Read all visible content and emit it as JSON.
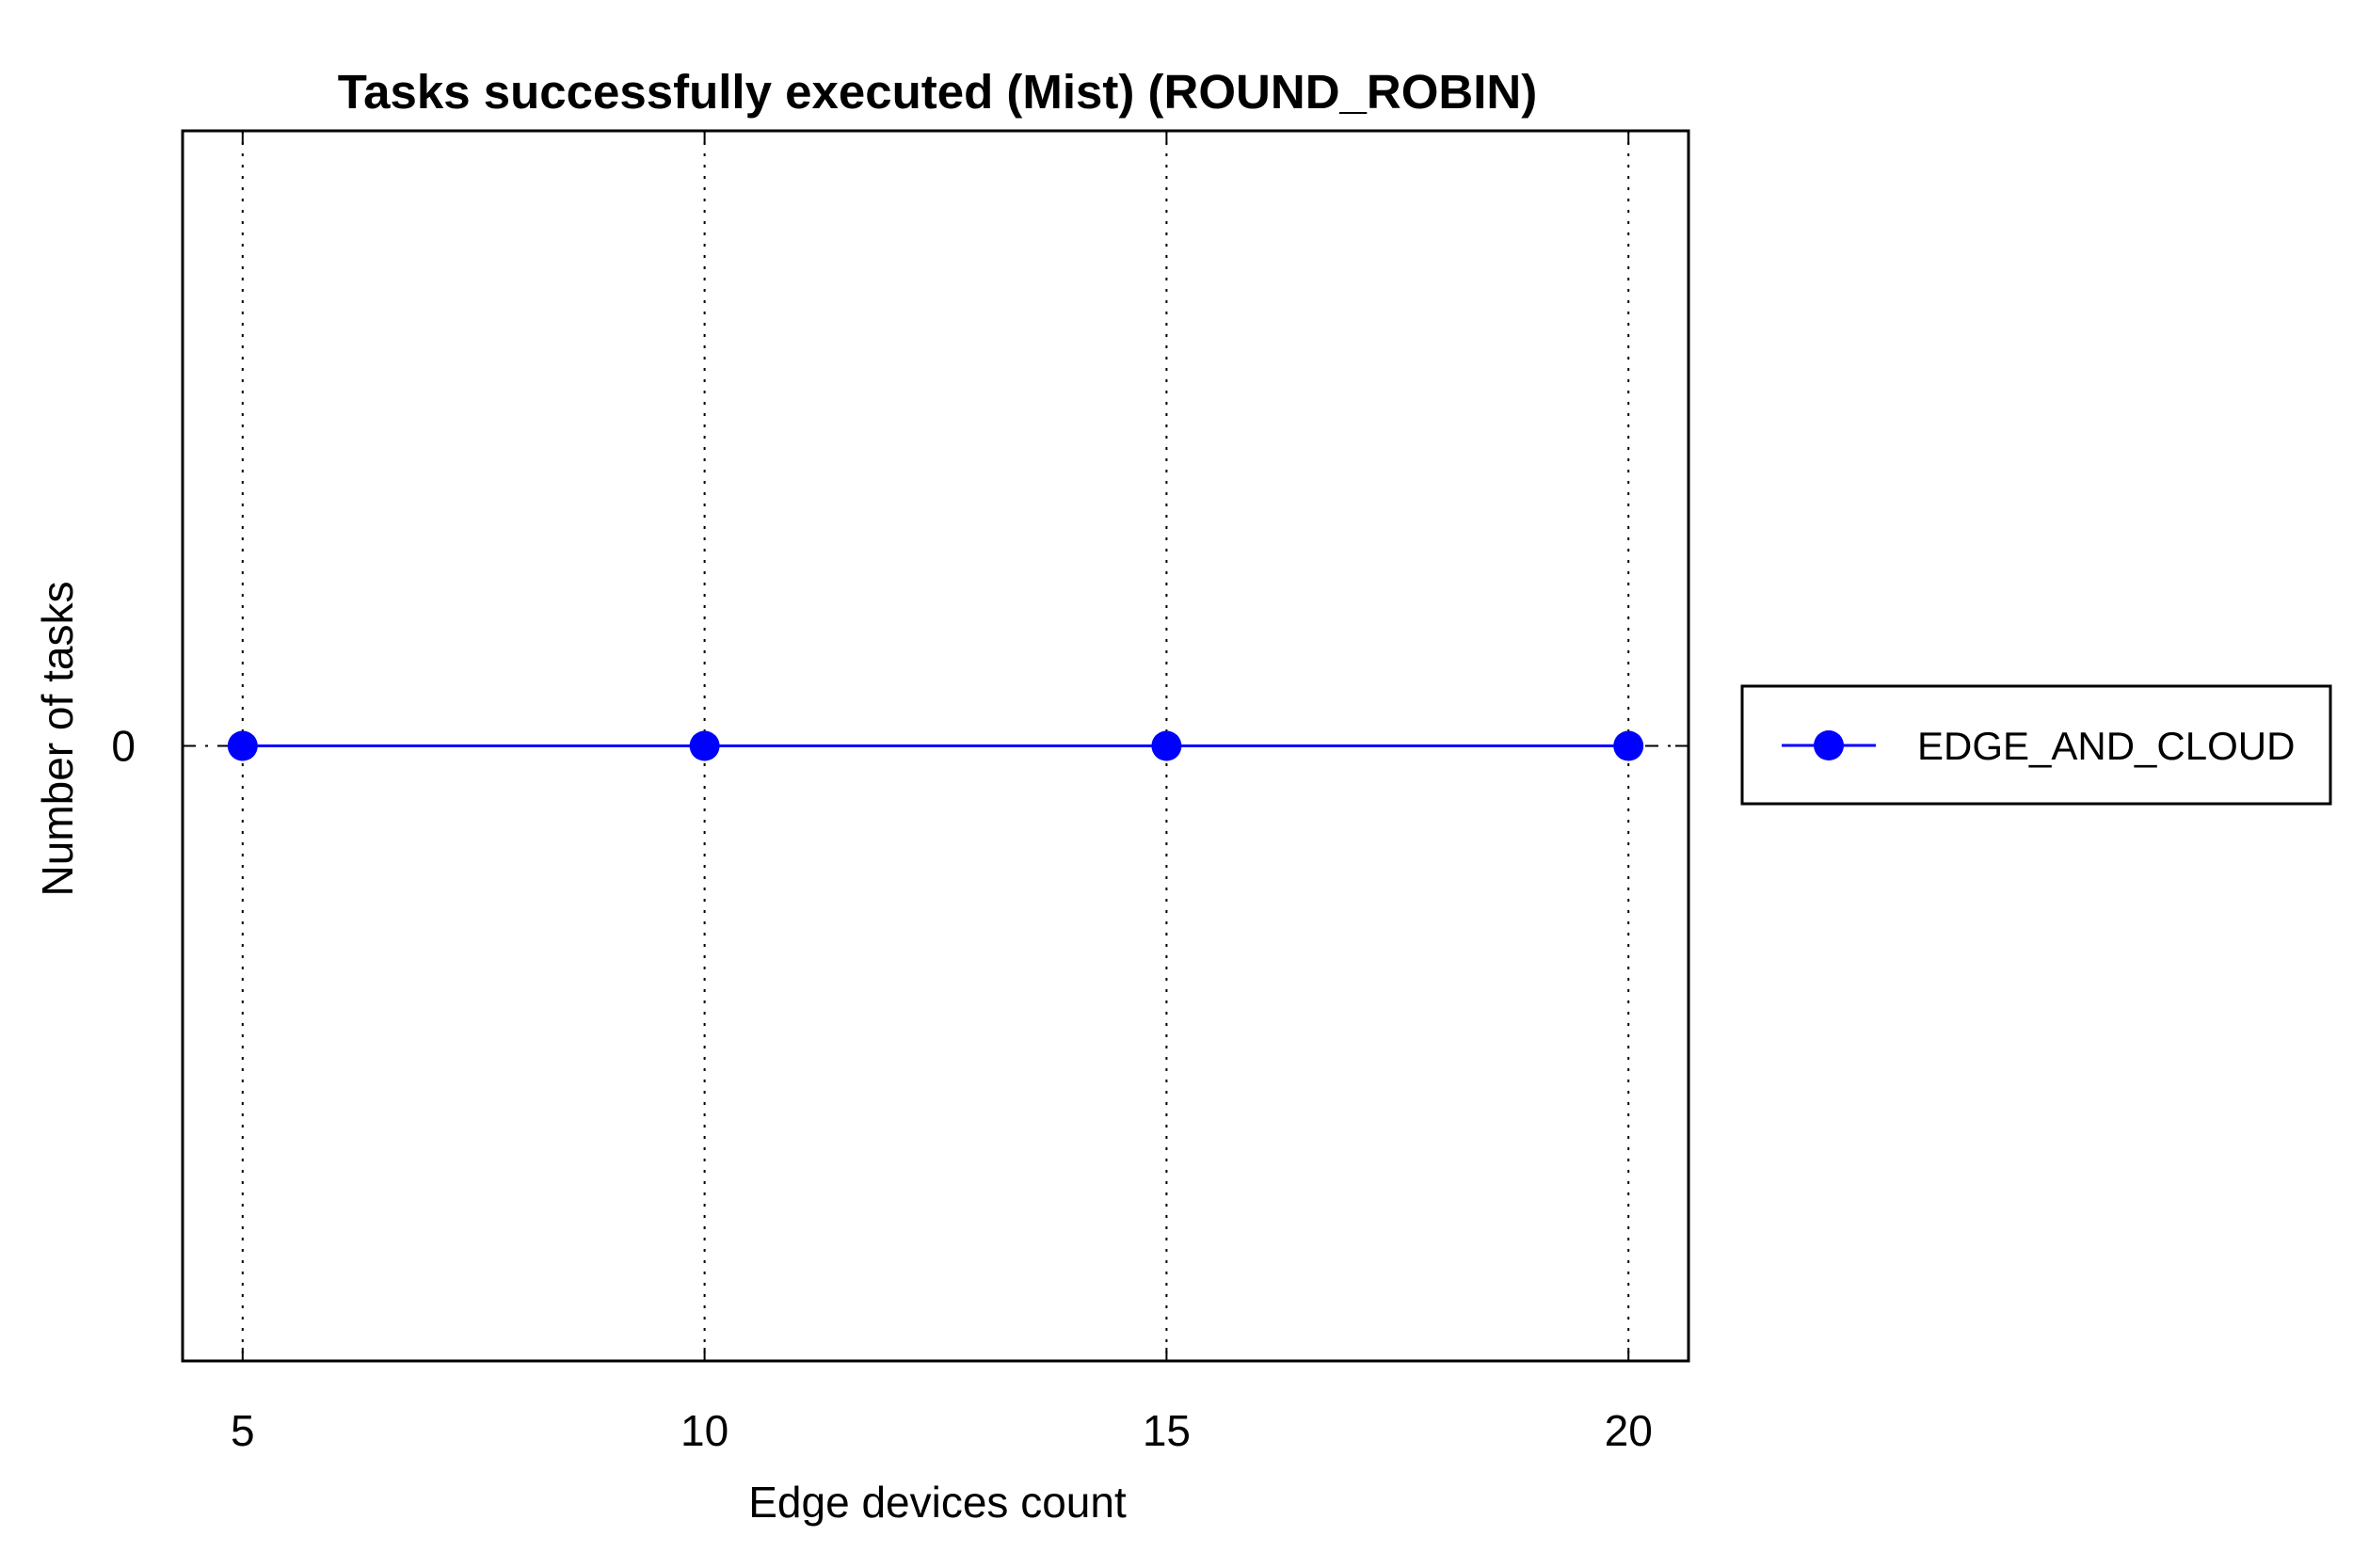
{
  "chart_data": {
    "type": "line",
    "title": "Tasks successfully executed (Mist) (ROUND_ROBIN)",
    "xlabel": "Edge devices count",
    "ylabel": "Number of tasks",
    "x": [
      5,
      10,
      15,
      20
    ],
    "x_tick_labels": [
      "5",
      "10",
      "15",
      "20"
    ],
    "y_tick_labels": [
      "0"
    ],
    "xlim": [
      4.35,
      20.65
    ],
    "ylim": [
      -1,
      1
    ],
    "grid": "x-dotted",
    "legend_position": "outside-right",
    "series": [
      {
        "name": "EDGE_AND_CLOUD",
        "color": "#0000ff",
        "marker": "circle",
        "values": [
          0,
          0,
          0,
          0
        ]
      }
    ]
  }
}
